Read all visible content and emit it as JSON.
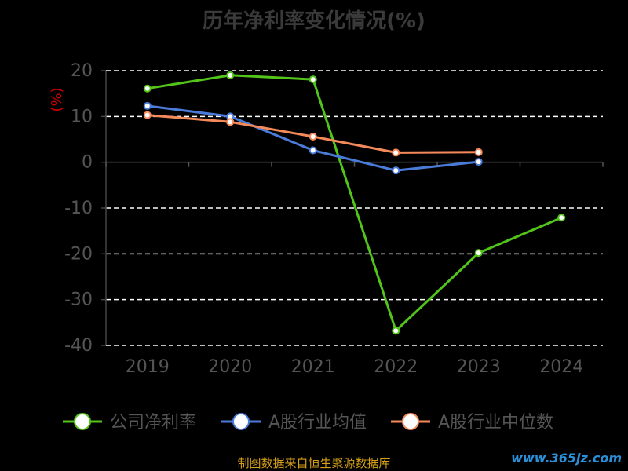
{
  "chart_data": {
    "type": "line",
    "title": "历年净利率变化情况(%)",
    "ylabel": "(%)",
    "categories": [
      "2019",
      "2020",
      "2021",
      "2022",
      "2023",
      "2024"
    ],
    "ylim": [
      -40,
      20
    ],
    "yticks": [
      20,
      10,
      0,
      -10,
      -20,
      -30,
      -40
    ],
    "grid": true,
    "legend_position": "bottom",
    "series": [
      {
        "name": "公司净利率",
        "color": "#52c41a",
        "values": [
          16.1,
          19.0,
          18.1,
          -36.8,
          -19.8,
          -12.1
        ]
      },
      {
        "name": "A股行业均值",
        "color": "#4a7bd8",
        "values": [
          12.3,
          10.0,
          2.6,
          -1.8,
          0.1,
          null
        ]
      },
      {
        "name": "A股行业中位数",
        "color": "#f4895a",
        "values": [
          10.3,
          8.8,
          5.6,
          2.1,
          2.2,
          null
        ]
      }
    ]
  },
  "footer": {
    "source": "制图数据来自恒生聚源数据库",
    "watermark": "www.365jz.com"
  }
}
